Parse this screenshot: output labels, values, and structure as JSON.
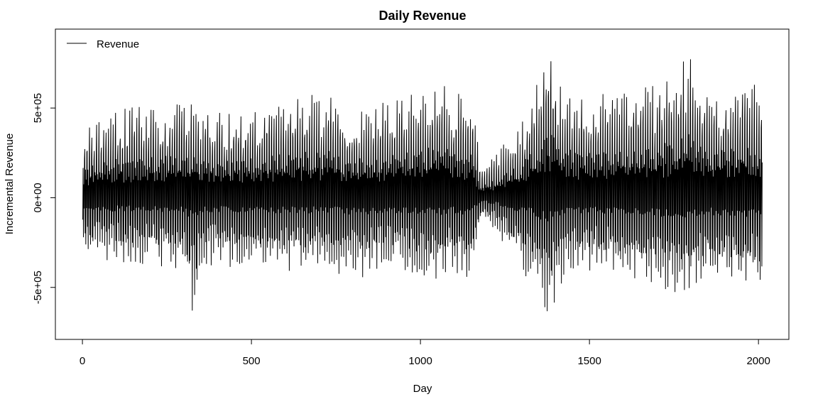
{
  "chart_data": {
    "type": "line",
    "title": "Daily Revenue",
    "xlabel": "Day",
    "ylabel": "Incremental Revenue",
    "xlim": [
      -80,
      2090
    ],
    "ylim": [
      -790000,
      940000
    ],
    "x_ticks": [
      0,
      500,
      1000,
      1500,
      2000
    ],
    "x_tick_labels": [
      "0",
      "500",
      "1000",
      "1500",
      "2000"
    ],
    "y_ticks": [
      -500000,
      0,
      500000
    ],
    "y_tick_labels": [
      "-5e+05",
      "0e+00",
      "5e+05"
    ],
    "grid": false,
    "legend": {
      "position": "top-left",
      "entries": [
        "Revenue"
      ]
    },
    "series": [
      {
        "name": "Revenue",
        "color": "#000000",
        "x_range": [
          1,
          2011
        ],
        "envelope_days": [
          0,
          100,
          200,
          300,
          330,
          350,
          400,
          500,
          600,
          700,
          720,
          800,
          900,
          1000,
          1060,
          1100,
          1150,
          1180,
          1200,
          1300,
          1380,
          1400,
          1450,
          1500,
          1600,
          1700,
          1800,
          1850,
          1900,
          2000,
          2011
        ],
        "envelope_max": [
          380000,
          500000,
          510000,
          530000,
          550000,
          500000,
          480000,
          500000,
          550000,
          580000,
          600000,
          480000,
          550000,
          600000,
          660000,
          580000,
          600000,
          150000,
          200000,
          420000,
          860000,
          720000,
          600000,
          580000,
          600000,
          640000,
          820000,
          580000,
          620000,
          700000,
          590000
        ],
        "envelope_min": [
          -340000,
          -390000,
          -400000,
          -420000,
          -730000,
          -420000,
          -400000,
          -420000,
          -440000,
          -440000,
          -430000,
          -500000,
          -430000,
          -480000,
          -500000,
          -430000,
          -510000,
          -120000,
          -150000,
          -420000,
          -700000,
          -600000,
          -450000,
          -430000,
          -470000,
          -520000,
          -600000,
          -480000,
          -520000,
          -540000,
          -630000
        ],
        "approx_min": -730000,
        "approx_max": 870000
      }
    ]
  }
}
